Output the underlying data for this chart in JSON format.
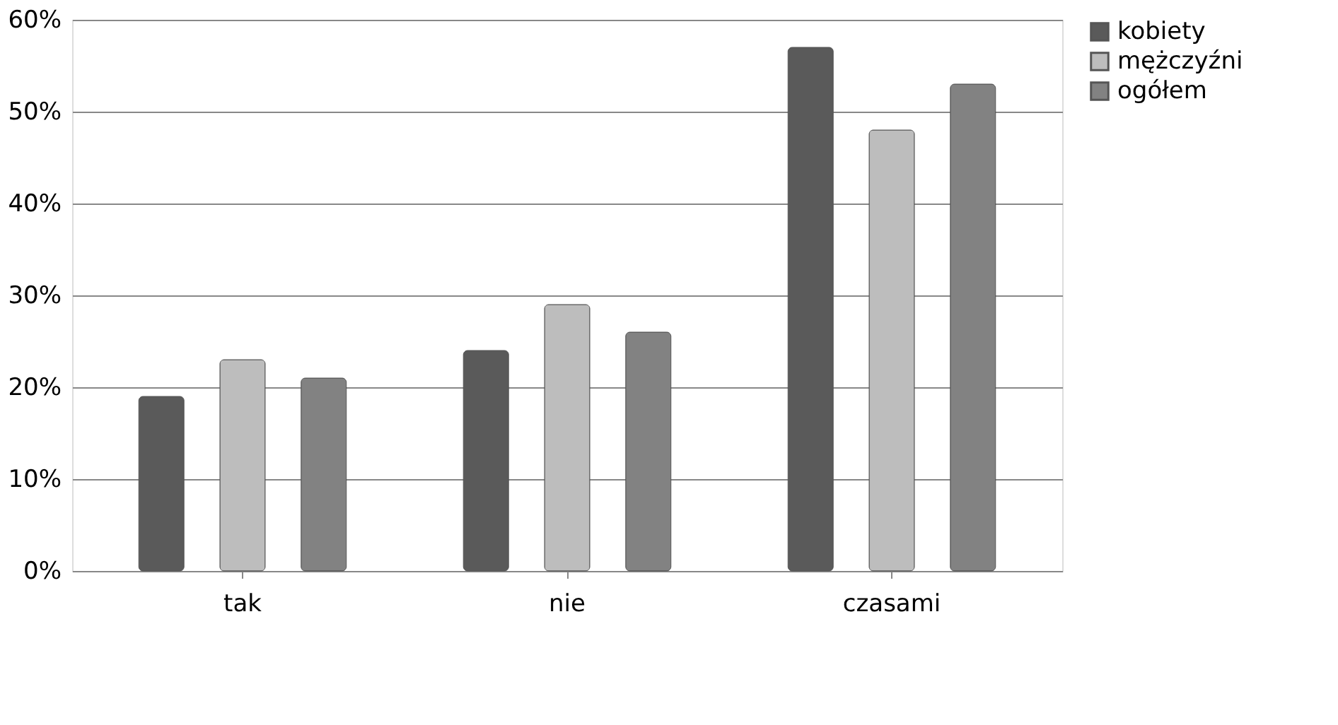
{
  "chart_data": {
    "type": "bar",
    "categories": [
      "tak",
      "nie",
      "czasami"
    ],
    "series": [
      {
        "name": "kobiety",
        "color": "#5a5a5a",
        "values": [
          19,
          24,
          57
        ]
      },
      {
        "name": "mężczyźni",
        "color": "#bdbdbd",
        "values": [
          23,
          29,
          48
        ]
      },
      {
        "name": "ogółem",
        "color": "#828282",
        "values": [
          21,
          26,
          53
        ]
      }
    ],
    "ylim": [
      0,
      60
    ],
    "yticks": [
      {
        "value": 0,
        "label": "0%"
      },
      {
        "value": 10,
        "label": "10%"
      },
      {
        "value": 20,
        "label": "20%"
      },
      {
        "value": 30,
        "label": "30%"
      },
      {
        "value": 40,
        "label": "40%"
      },
      {
        "value": 50,
        "label": "50%"
      },
      {
        "value": 60,
        "label": "60%"
      }
    ],
    "grid": "y",
    "legend": "right"
  }
}
